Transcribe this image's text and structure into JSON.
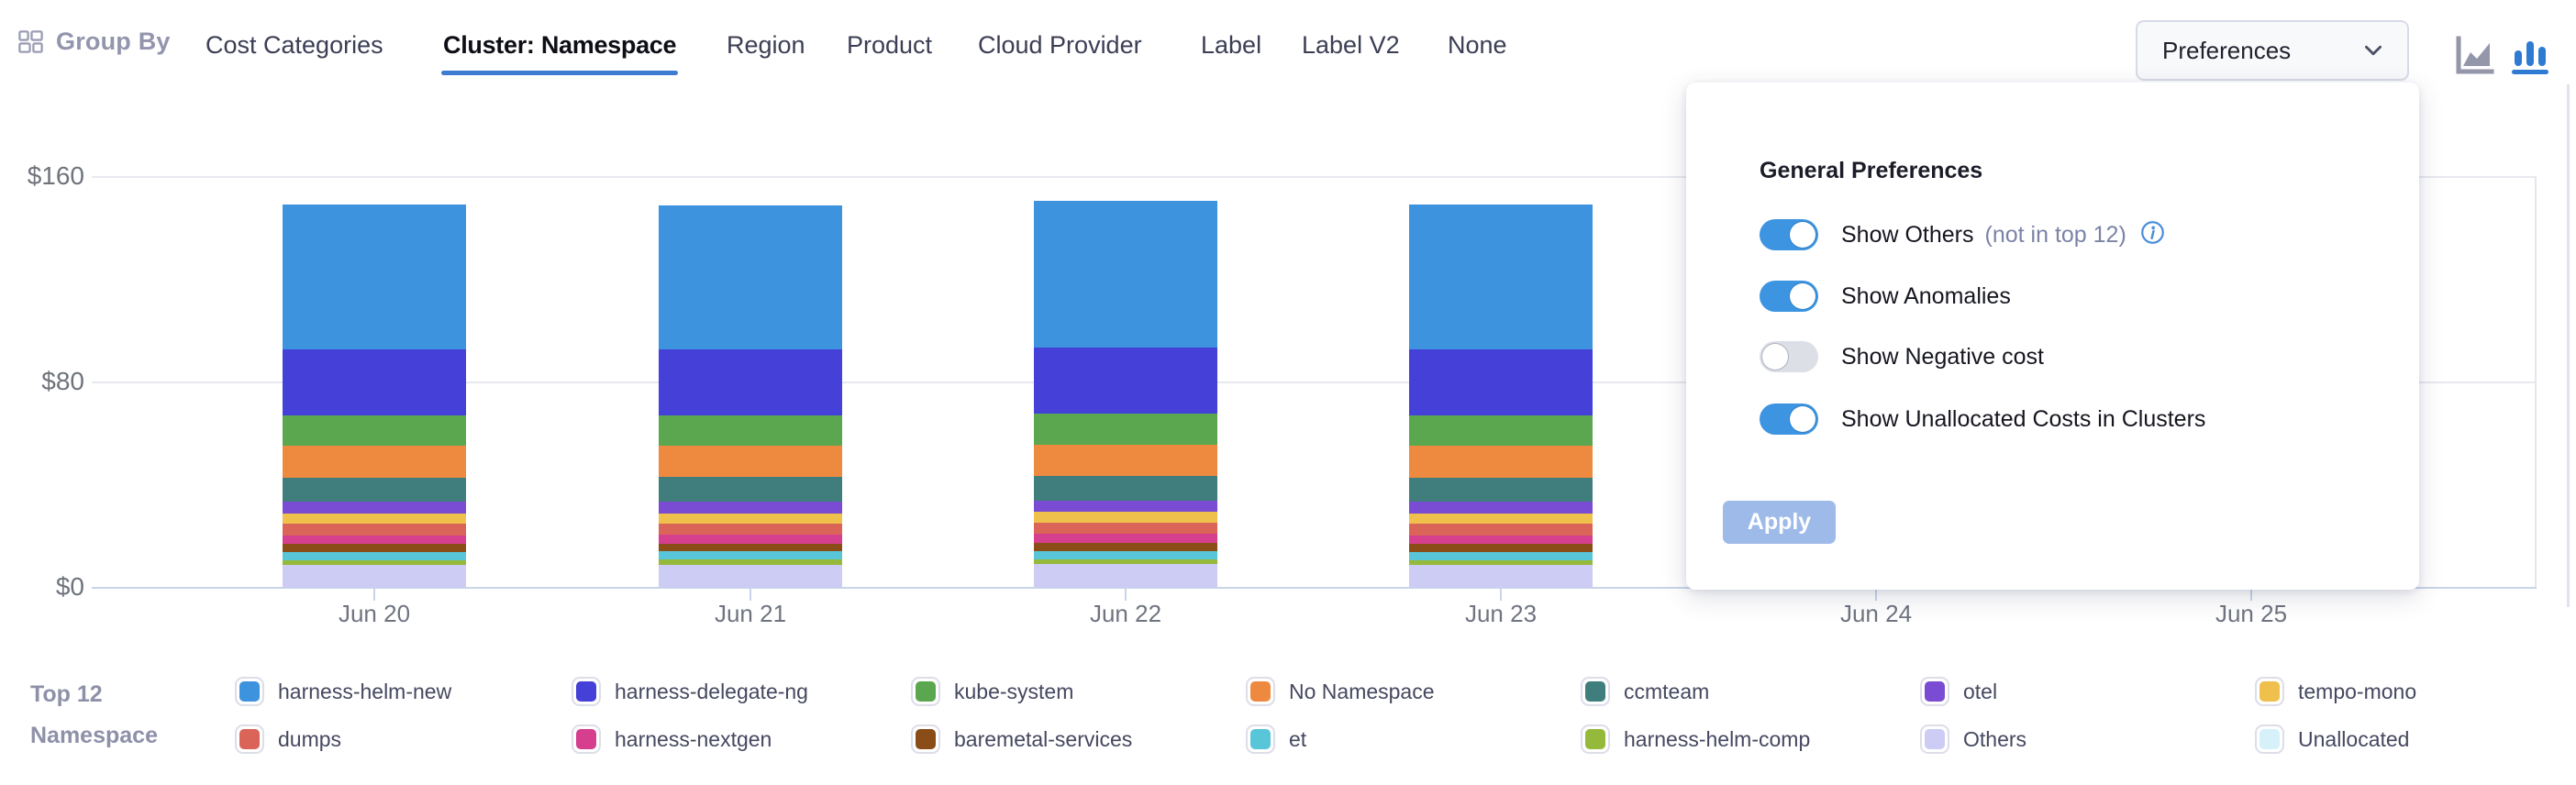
{
  "header": {
    "group_by_label": "Group By",
    "tabs": [
      {
        "label": "Cost Categories",
        "active": false
      },
      {
        "label": "Cluster: Namespace",
        "active": true
      },
      {
        "label": "Region",
        "active": false
      },
      {
        "label": "Product",
        "active": false
      },
      {
        "label": "Cloud Provider",
        "active": false
      },
      {
        "label": "Label",
        "active": false
      },
      {
        "label": "Label V2",
        "active": false
      },
      {
        "label": "None",
        "active": false
      }
    ],
    "preferences_button": {
      "label": "Preferences"
    },
    "chart_type_icons": [
      {
        "name": "area-chart-icon",
        "active": false
      },
      {
        "name": "bar-chart-icon",
        "active": true
      }
    ]
  },
  "preferences_panel": {
    "title": "General Preferences",
    "toggles": [
      {
        "label": "Show Others",
        "hint": "(not in top 12)",
        "has_info_icon": true,
        "on": true
      },
      {
        "label": "Show Anomalies",
        "hint": "",
        "has_info_icon": false,
        "on": true
      },
      {
        "label": "Show Negative cost",
        "hint": "",
        "has_info_icon": false,
        "on": false
      },
      {
        "label": "Show Unallocated Costs in Clusters",
        "hint": "",
        "has_info_icon": false,
        "on": true
      }
    ],
    "apply_label": "Apply",
    "apply_enabled": false
  },
  "legend": {
    "title_line1": "Top 12",
    "title_line2": "Namespace"
  },
  "chart_data": {
    "type": "bar",
    "stacked": true,
    "title": "",
    "xlabel": "",
    "ylabel": "",
    "ylim": [
      0,
      160
    ],
    "y_ticks": [
      {
        "value": 0,
        "label": "$0"
      },
      {
        "value": 80,
        "label": "$80"
      },
      {
        "value": 160,
        "label": "$160"
      }
    ],
    "categories": [
      "Jun 20",
      "Jun 21",
      "Jun 22",
      "Jun 23",
      "Jun 24",
      "Jun 25"
    ],
    "visible_categories": [
      "Jun 20",
      "Jun 21",
      "Jun 22",
      "Jun 23"
    ],
    "note": "Bars for Jun 24 and Jun 25 are hidden behind the open Preferences panel; values are approximate USD read from the $0–$160 axis",
    "series": [
      {
        "name": "harness-helm-new",
        "color": "#3D93DE",
        "values": [
          56.6,
          56.0,
          57.0,
          56.5
        ]
      },
      {
        "name": "harness-delegate-ng",
        "color": "#4440D8",
        "values": [
          25.6,
          25.5,
          25.8,
          25.6
        ]
      },
      {
        "name": "kube-system",
        "color": "#5AA750",
        "values": [
          12.0,
          12.0,
          12.1,
          12.0
        ]
      },
      {
        "name": "No Namespace",
        "color": "#ED8A40",
        "values": [
          12.2,
          12.2,
          12.3,
          12.2
        ]
      },
      {
        "name": "ccmteam",
        "color": "#3F7E7D",
        "values": [
          9.4,
          9.4,
          9.4,
          9.4
        ]
      },
      {
        "name": "otel",
        "color": "#7A4CD3",
        "values": [
          4.6,
          4.6,
          4.6,
          4.6
        ]
      },
      {
        "name": "tempo-mono",
        "color": "#EFC04B",
        "values": [
          4.1,
          4.1,
          4.2,
          4.1
        ]
      },
      {
        "name": "dumps",
        "color": "#DA6457",
        "values": [
          4.4,
          4.4,
          4.4,
          4.4
        ]
      },
      {
        "name": "harness-nextgen",
        "color": "#D63E8E",
        "values": [
          3.4,
          3.4,
          3.5,
          3.4
        ]
      },
      {
        "name": "baremetal-services",
        "color": "#8A4D17",
        "values": [
          3.0,
          3.0,
          3.0,
          3.0
        ]
      },
      {
        "name": "et",
        "color": "#58C5D8",
        "values": [
          3.3,
          3.3,
          3.3,
          3.3
        ]
      },
      {
        "name": "harness-helm-comp",
        "color": "#95B93A",
        "values": [
          1.8,
          1.8,
          1.9,
          1.8
        ]
      },
      {
        "name": "Others",
        "color": "#CDCCF4",
        "values": [
          9.0,
          9.1,
          9.2,
          9.0
        ]
      },
      {
        "name": "Unallocated",
        "color": "#D6F1FA",
        "values": [
          0,
          0,
          0,
          0
        ]
      }
    ],
    "legend_position": "bottom",
    "grid": true
  },
  "colors": {
    "active_tab_underline": "#3E7CD2",
    "toggle_on": "#3D94E1",
    "toggle_off": "#DCDFE6",
    "apply_button": "#9DBAE9",
    "icon_active": "#2F7AD3",
    "icon_inactive": "#9496A9",
    "gridline": "#E7E9EF",
    "axis_line": "#C8D4E7"
  }
}
